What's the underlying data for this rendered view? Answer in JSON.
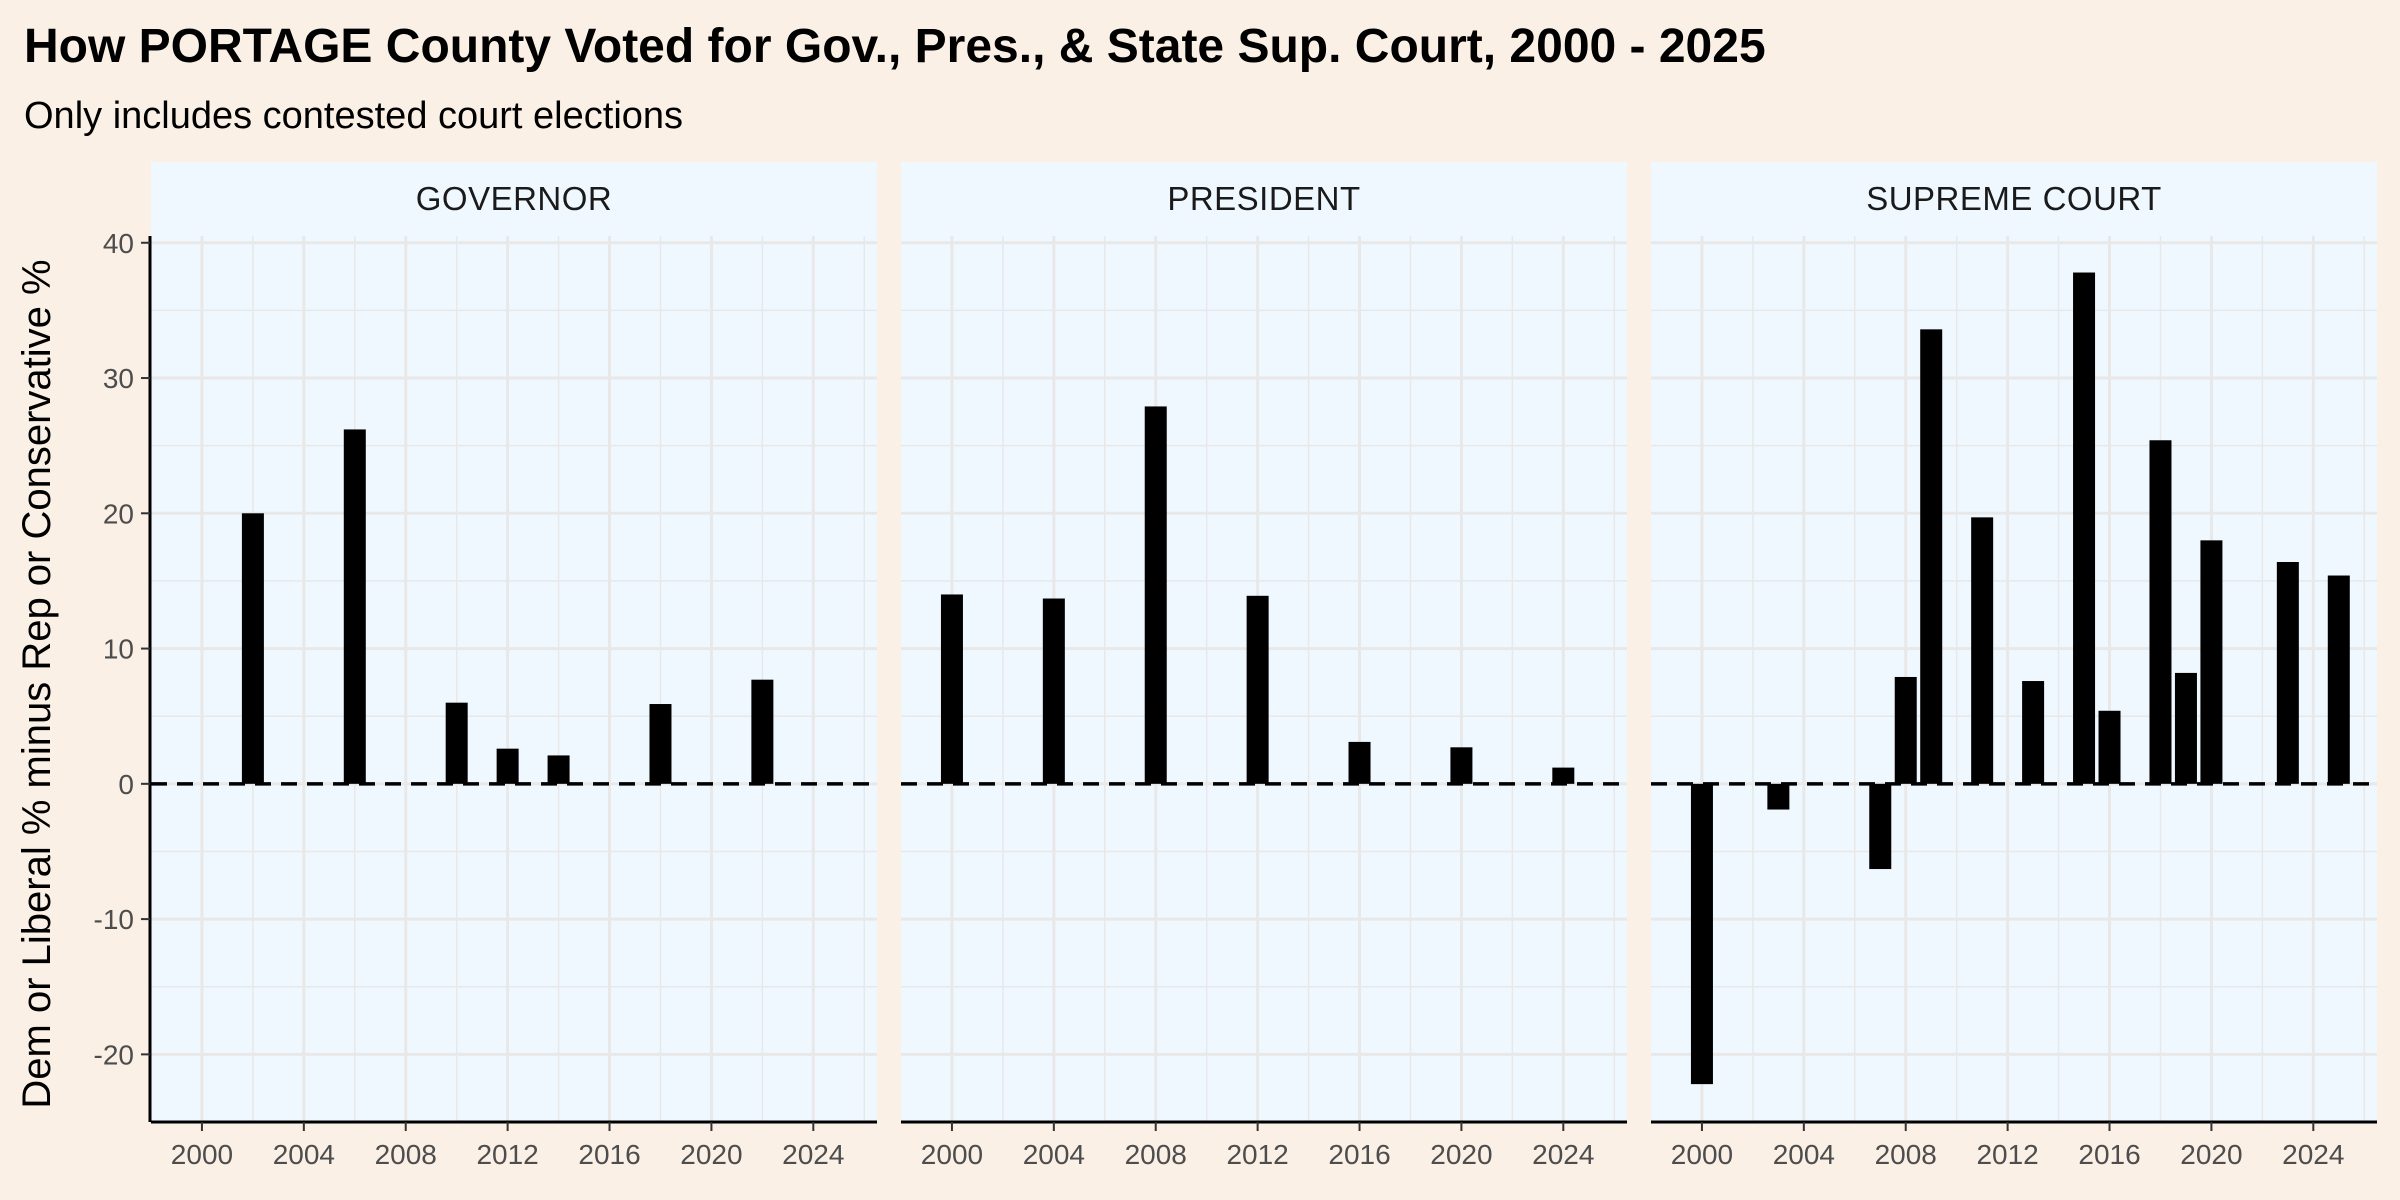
{
  "chart_data": {
    "type": "bar",
    "title": "How PORTAGE County Voted for Gov., Pres., & State Sup. Court, 2000 - 2025",
    "subtitle": "Only includes contested court elections",
    "ylabel": "Dem or Liberal % minus Rep or Conservative %",
    "xlabel": "",
    "xlim": [
      1998,
      2026.5
    ],
    "ylim": [
      -25,
      40.5
    ],
    "x_ticks": [
      2000,
      2004,
      2008,
      2012,
      2016,
      2020,
      2024
    ],
    "y_ticks": [
      -20,
      -10,
      0,
      10,
      20,
      30,
      40
    ],
    "reference_line": 0,
    "grid": true,
    "colors": {
      "bar": "#000000",
      "panel_background": "#f0f8ff",
      "plot_background": "#faf0e6",
      "grid": "#e8e8e8",
      "strip_background": "#f0f8ff"
    },
    "panels": [
      {
        "label": "GOVERNOR",
        "x": [
          2002,
          2006,
          2010,
          2012,
          2014,
          2018,
          2022
        ],
        "values": [
          20.0,
          26.2,
          6.0,
          2.6,
          2.1,
          5.9,
          7.7
        ]
      },
      {
        "label": "PRESIDENT",
        "x": [
          2000,
          2004,
          2008,
          2012,
          2016,
          2020,
          2024
        ],
        "values": [
          14.0,
          13.7,
          27.9,
          13.9,
          3.1,
          2.7,
          1.2
        ]
      },
      {
        "label": "SUPREME COURT",
        "x": [
          2000,
          2003,
          2007,
          2008,
          2009,
          2011,
          2013,
          2015,
          2016,
          2018,
          2019,
          2020,
          2023,
          2025
        ],
        "values": [
          -22.2,
          -1.9,
          -6.3,
          7.9,
          33.6,
          19.7,
          7.6,
          37.8,
          5.4,
          25.4,
          8.2,
          18.0,
          16.4,
          15.4
        ]
      }
    ]
  }
}
